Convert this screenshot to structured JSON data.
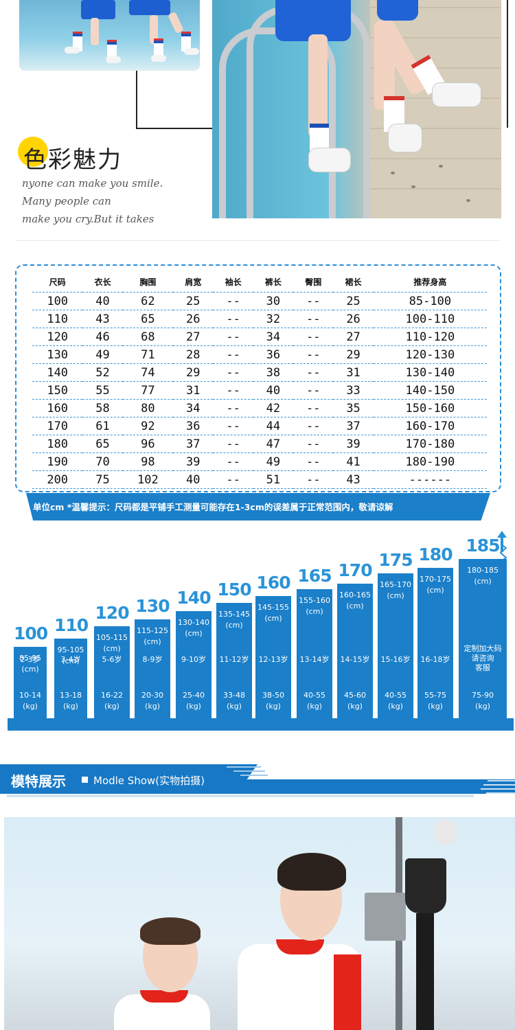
{
  "charm": {
    "title": "色彩魅力",
    "slogan_lines": [
      "nyone can make you smile.",
      "Many people can",
      "make you cry.But it takes"
    ]
  },
  "size_table": {
    "headers": [
      "尺码",
      "衣长",
      "胸围",
      "肩宽",
      "袖长",
      "裤长",
      "臀围",
      "裙长",
      "推荐身高"
    ],
    "rows": [
      [
        "100",
        "40",
        "62",
        "25",
        "--",
        "30",
        "--",
        "25",
        "85-100"
      ],
      [
        "110",
        "43",
        "65",
        "26",
        "--",
        "32",
        "--",
        "26",
        "100-110"
      ],
      [
        "120",
        "46",
        "68",
        "27",
        "--",
        "34",
        "--",
        "27",
        "110-120"
      ],
      [
        "130",
        "49",
        "71",
        "28",
        "--",
        "36",
        "--",
        "29",
        "120-130"
      ],
      [
        "140",
        "52",
        "74",
        "29",
        "--",
        "38",
        "--",
        "31",
        "130-140"
      ],
      [
        "150",
        "55",
        "77",
        "31",
        "--",
        "40",
        "--",
        "33",
        "140-150"
      ],
      [
        "160",
        "58",
        "80",
        "34",
        "--",
        "42",
        "--",
        "35",
        "150-160"
      ],
      [
        "170",
        "61",
        "92",
        "36",
        "--",
        "44",
        "--",
        "37",
        "160-170"
      ],
      [
        "180",
        "65",
        "96",
        "37",
        "--",
        "47",
        "--",
        "39",
        "170-180"
      ],
      [
        "190",
        "70",
        "98",
        "39",
        "--",
        "49",
        "--",
        "41",
        "180-190"
      ],
      [
        "200",
        "75",
        "102",
        "40",
        "--",
        "51",
        "--",
        "43",
        "------"
      ]
    ],
    "note": "单位cm  *温馨提示：尺码都是平铺手工测量可能存在1-3cm的误差属于正常范围内，敬请谅解"
  },
  "height_chart": {
    "bars": [
      {
        "size": "100",
        "height": "85-95",
        "unit": "(cm)",
        "age": "2-3岁",
        "weight": "10-14",
        "wunit": "(kg)"
      },
      {
        "size": "110",
        "height": "95-105",
        "unit": "(cm)",
        "age": "3-4岁",
        "weight": "13-18",
        "wunit": "(kg)"
      },
      {
        "size": "120",
        "height": "105-115",
        "unit": "(cm)",
        "age": "5-6岁",
        "weight": "16-22",
        "wunit": "(kg)"
      },
      {
        "size": "130",
        "height": "115-125",
        "unit": "(cm)",
        "age": "8-9岁",
        "weight": "20-30",
        "wunit": "(kg)"
      },
      {
        "size": "140",
        "height": "130-140",
        "unit": "(cm)",
        "age": "9-10岁",
        "weight": "25-40",
        "wunit": "(kg)"
      },
      {
        "size": "150",
        "height": "135-145",
        "unit": "(cm)",
        "age": "11-12岁",
        "weight": "33-48",
        "wunit": "(kg)"
      },
      {
        "size": "160",
        "height": "145-155",
        "unit": "(cm)",
        "age": "12-13岁",
        "weight": "38-50",
        "wunit": "(kg)"
      },
      {
        "size": "165",
        "height": "155-160",
        "unit": "(cm)",
        "age": "13-14岁",
        "weight": "40-55",
        "wunit": "(kg)"
      },
      {
        "size": "170",
        "height": "160-165",
        "unit": "(cm)",
        "age": "14-15岁",
        "weight": "45-60",
        "wunit": "(kg)"
      },
      {
        "size": "175",
        "height": "165-170",
        "unit": "(cm)",
        "age": "15-16岁",
        "weight": "40-55",
        "wunit": "(kg)"
      },
      {
        "size": "180",
        "height": "170-175",
        "unit": "(cm)",
        "age": "16-18岁",
        "weight": "55-75",
        "wunit": "(kg)"
      },
      {
        "size": "185",
        "height": "180-185",
        "unit": "(cm)",
        "age": "定制加大码\n请咨询\n客服",
        "weight": "75-90",
        "wunit": "(kg)"
      }
    ]
  },
  "model_show": {
    "title": "模特展示",
    "subtitle": "Modle Show(实物拍摄)"
  },
  "colors": {
    "accent": "#1b7fc9",
    "table_border": "#2b8dd9",
    "charm_dot": "#ffd400"
  }
}
